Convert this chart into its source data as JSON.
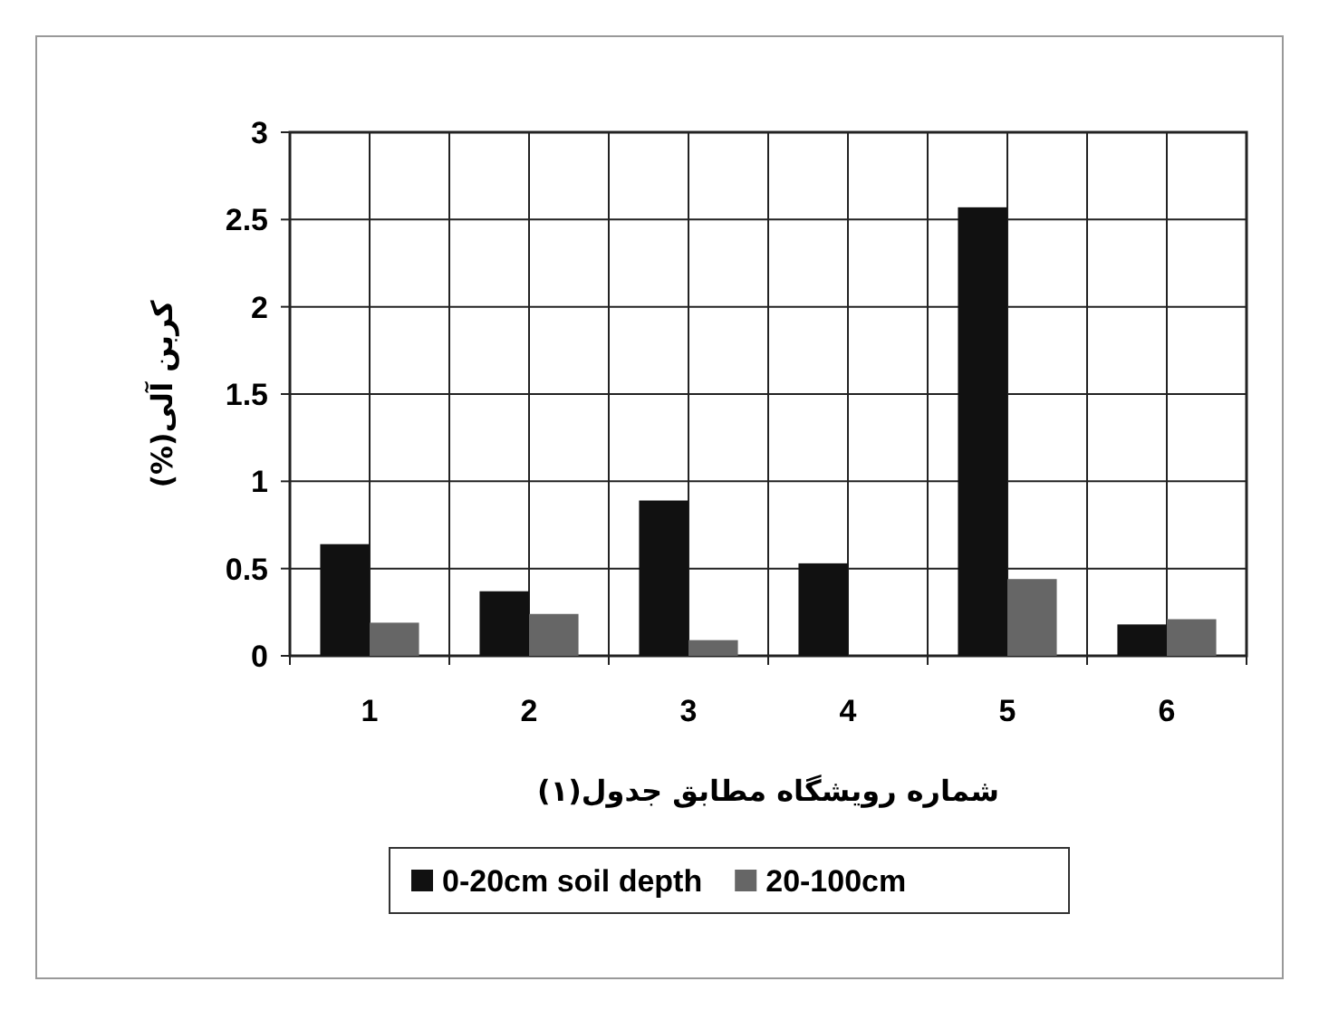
{
  "chart_data": {
    "type": "bar",
    "categories": [
      "1",
      "2",
      "3",
      "4",
      "5",
      "6"
    ],
    "series": [
      {
        "name": "0-20cm soil depth",
        "color": "#111111",
        "values": [
          0.64,
          0.37,
          0.89,
          0.53,
          2.57,
          0.18
        ]
      },
      {
        "name": "20-100cm",
        "color": "#666666",
        "values": [
          0.19,
          0.24,
          0.09,
          null,
          0.44,
          0.21
        ]
      }
    ],
    "xlabel": "شماره رویشگاه  مطابق جدول(۱)",
    "ylabel": "کربن آلی(%)",
    "ylim": [
      0,
      3
    ],
    "yticks": [
      0,
      0.5,
      1,
      1.5,
      2,
      2.5,
      3
    ],
    "grid": true,
    "legend": "bottom"
  }
}
